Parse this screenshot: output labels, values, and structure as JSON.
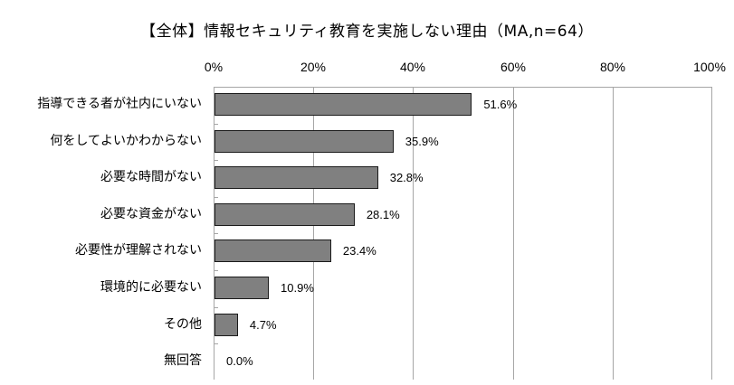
{
  "chart_data": {
    "type": "bar",
    "orientation": "horizontal",
    "title": "【全体】情報セキュリティ教育を実施しない理由（MA,n=64）",
    "xlabel": "",
    "ylabel": "",
    "xlim": [
      0,
      100
    ],
    "x_ticks": [
      "0%",
      "20%",
      "40%",
      "60%",
      "80%",
      "100%"
    ],
    "grid": true,
    "legend": null,
    "categories": [
      "指導できる者が社内にいない",
      "何をしてよいかわからない",
      "必要な時間がない",
      "必要な資金がない",
      "必要性が理解されない",
      "環境的に必要ない",
      "その他",
      "無回答"
    ],
    "values": [
      51.6,
      35.9,
      32.8,
      28.1,
      23.4,
      10.9,
      4.7,
      0.0
    ],
    "value_labels": [
      "51.6%",
      "35.9%",
      "32.8%",
      "28.1%",
      "23.4%",
      "10.9%",
      "4.7%",
      "0.0%"
    ],
    "bar_color": "#808080",
    "bar_border": "#1a1a1a"
  }
}
